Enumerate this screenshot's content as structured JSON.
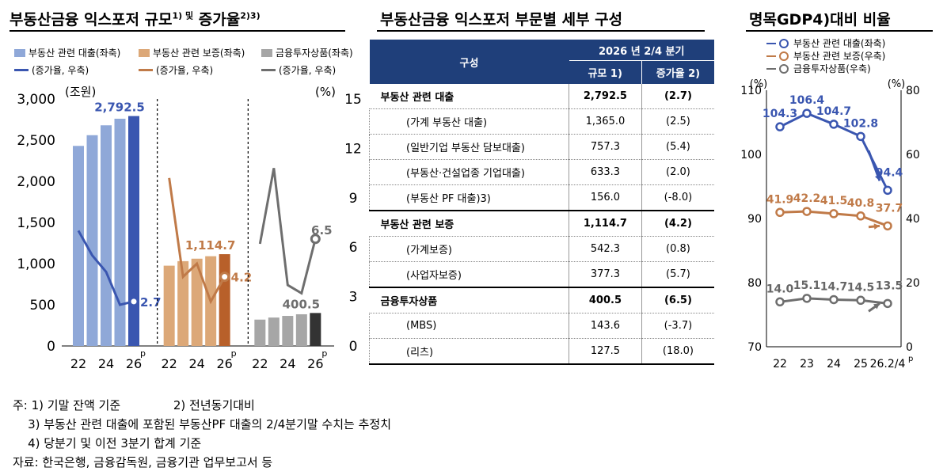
{
  "panel1": {
    "title": "부동산금융 익스포저 규모",
    "title_sup": "1) 및",
    "title_rest": "증가율",
    "title_sup2": "2)3)",
    "legend": [
      "부동산 관련 대출(좌축)",
      "부동산 관련 보증(좌축)",
      "금융투자상품(좌축)",
      "(증가율, 우축)",
      "(증가율, 우축)",
      "(증가율, 우축)"
    ],
    "left_unit": "(조원)",
    "right_unit": "(%)",
    "left_ticks": [
      "3,000",
      "2,500",
      "2,000",
      "1,500",
      "1,000",
      "500",
      "0"
    ],
    "right_ticks": [
      "15",
      "12",
      "9",
      "6",
      "3",
      "0"
    ],
    "x_ticks": [
      "22",
      "24",
      "26",
      "22",
      "24",
      "26",
      "22",
      "24",
      "26"
    ],
    "p_mark": "p",
    "labels": {
      "loan_level": "2,792.5",
      "loan_growth": "2.7",
      "guar_level": "1,114.7",
      "guar_growth": "4.2",
      "inv_level": "400.5",
      "inv_growth": "6.5"
    }
  },
  "chart_data": [
    {
      "type": "bar",
      "title": "부동산금융 익스포저 규모 및 증가율",
      "ylabel": "(조원)",
      "ylim": [
        0,
        3000
      ],
      "y2label": "(%)",
      "y2lim": [
        0,
        15
      ],
      "groups": [
        {
          "name": "부동산 관련 대출(좌축)",
          "color": "#8fa8d8",
          "last_color": "#3a56b0",
          "bars": [
            2430,
            2560,
            2680,
            2760,
            2792.5
          ],
          "growth_name": "(증가율, 우축)",
          "growth_color": "#3a56b0",
          "growth": [
            7.0,
            5.5,
            4.5,
            2.5,
            2.7
          ]
        },
        {
          "name": "부동산 관련 보증(좌축)",
          "color": "#dca878",
          "last_color": "#b8602a",
          "bars": [
            975,
            1030,
            1060,
            1090,
            1114.7
          ],
          "growth_name": "(증가율, 우축)",
          "growth_color": "#c07a48",
          "growth": [
            10.2,
            4.2,
            5.0,
            2.7,
            4.2
          ]
        },
        {
          "name": "금융투자상품(좌축)",
          "color": "#a6a6a6",
          "last_color": "#333333",
          "bars": [
            320,
            345,
            365,
            385,
            400.5
          ],
          "growth_name": "(증가율, 우축)",
          "growth_color": "#6e6e6e",
          "growth": [
            6.2,
            10.8,
            3.7,
            3.2,
            6.5
          ]
        }
      ]
    },
    {
      "type": "table",
      "title": "부동산금융 익스포저 부문별 세부 구성",
      "header": {
        "col1": "구성",
        "period": "2026 년 2/4 분기",
        "size": "규모 1)",
        "growth": "증가율 2)"
      },
      "rows": [
        {
          "label": "부동산 관련 대출",
          "size": "2,792.5",
          "growth": "(2.7)",
          "bold": true
        },
        {
          "label": "(가계 부동산 대출)",
          "size": "1,365.0",
          "growth": "(2.5)"
        },
        {
          "label": "(일반기업 부동산 담보대출)",
          "size": "757.3",
          "growth": "(5.4)"
        },
        {
          "label": "(부동산·건설업종 기업대출)",
          "size": "633.3",
          "growth": "(2.0)"
        },
        {
          "label": "(부동산 PF 대출)3)",
          "size": "156.0",
          "growth": "(-8.0)"
        },
        {
          "label": "부동산 관련 보증",
          "size": "1,114.7",
          "growth": "(4.2)",
          "bold": true
        },
        {
          "label": "(가계보증)",
          "size": "542.3",
          "growth": "(0.8)"
        },
        {
          "label": "(사업자보증)",
          "size": "377.3",
          "growth": "(5.7)"
        },
        {
          "label": "금융투자상품",
          "size": "400.5",
          "growth": "(6.5)",
          "bold": true
        },
        {
          "label": "(MBS)",
          "size": "143.6",
          "growth": "(-3.7)"
        },
        {
          "label": "(리츠)",
          "size": "127.5",
          "growth": "(18.0)"
        }
      ]
    },
    {
      "type": "line",
      "title": "명목GDP4)대비 비율",
      "x": [
        "22",
        "23",
        "24",
        "25",
        "26.2/4"
      ],
      "x_p_mark": "p",
      "ylabel": "(%)",
      "ylim": [
        70,
        110
      ],
      "y2label": "(%)",
      "y2lim": [
        0,
        80
      ],
      "left_ticks": [
        "110",
        "100",
        "90",
        "80",
        "70"
      ],
      "right_ticks": [
        "80",
        "60",
        "40",
        "20",
        "0"
      ],
      "series": [
        {
          "name": "부동산 관련 대출(좌축)",
          "axis": "left",
          "color": "#3a56b0",
          "values": [
            104.3,
            106.4,
            104.7,
            102.8,
            94.4
          ],
          "labels": [
            "104.3",
            "106.4",
            "104.7",
            "102.8",
            "94.4"
          ]
        },
        {
          "name": "부동산 관련 보증(우축)",
          "axis": "right",
          "color": "#c07a48",
          "values": [
            41.9,
            42.2,
            41.5,
            40.8,
            37.7
          ],
          "labels": [
            "41.9",
            "42.2",
            "41.5",
            "40.8",
            "37.7"
          ]
        },
        {
          "name": "금융투자상품(우축)",
          "axis": "right",
          "color": "#6e6e6e",
          "values": [
            14.0,
            15.1,
            14.7,
            14.5,
            13.5
          ],
          "labels": [
            "14.0",
            "15.1",
            "14.7",
            "14.5",
            "13.5"
          ]
        }
      ]
    }
  ],
  "notes": {
    "line1a": "주: 1) 기말 잔액 기준",
    "line1b": "2) 전년동기대비",
    "line2": "3) 부동산 관련 대출에 포함된 부동산PF 대출의 2/4분기말 수치는 추정치",
    "line3": "4) 당분기 및 이전 3분기 합계 기준",
    "source": "자료: 한국은행, 금융감독원, 금융기관 업무보고서 등"
  }
}
